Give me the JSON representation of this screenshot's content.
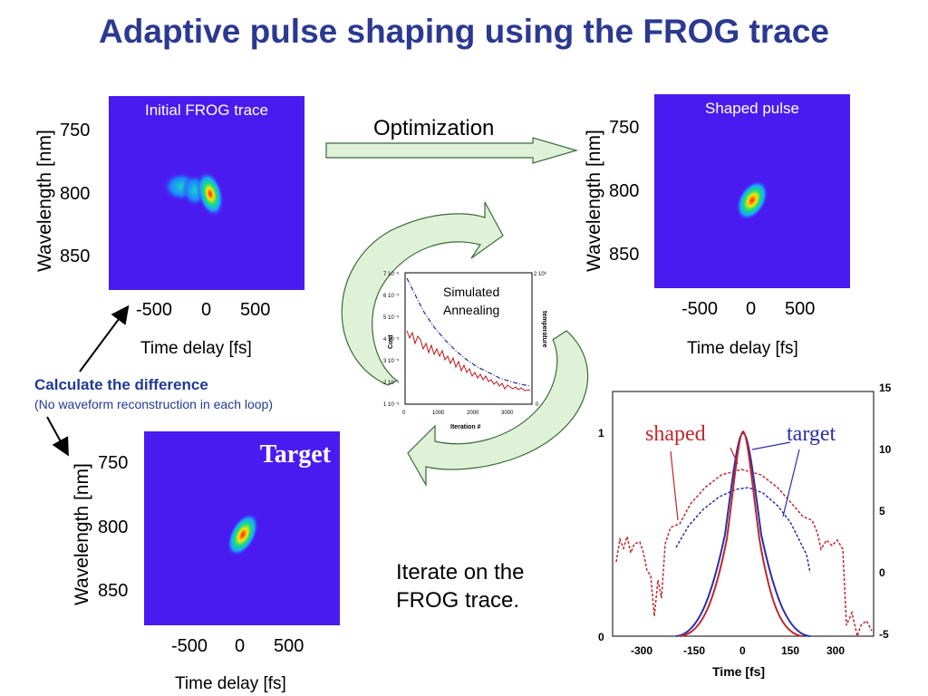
{
  "title": "Adaptive pulse shaping using the FROG trace",
  "optimization_label": "Optimization",
  "initial": {
    "label": "Initial FROG trace",
    "ylabel": "Wavelength [nm]",
    "xlabel": "Time delay [fs]",
    "yticks": [
      "750",
      "800",
      "850"
    ],
    "xticks": [
      "-500",
      "0",
      "500"
    ]
  },
  "shaped": {
    "label": "Shaped pulse",
    "ylabel": "Wavelength [nm]",
    "xlabel": "Time delay [fs]",
    "yticks": [
      "750",
      "800",
      "850"
    ],
    "xticks": [
      "-500",
      "0",
      "500"
    ]
  },
  "target": {
    "label": "Target",
    "ylabel": "Wavelength [nm]",
    "xlabel": "Time delay [fs]",
    "yticks": [
      "750",
      "800",
      "850"
    ],
    "xticks": [
      "-500",
      "0",
      "500"
    ]
  },
  "calc": {
    "title": "Calculate the difference",
    "subtitle": "(No waveform reconstruction in each loop)"
  },
  "iterate": [
    "Iterate on the",
    "FROG trace."
  ],
  "annealing": {
    "label": [
      "Simulated",
      "Annealing"
    ],
    "ylabel_left": "Cost",
    "ylabel_right": "temperature",
    "xlabel": "Iteration #",
    "yticks_left": [
      "7 10⁻⁵",
      "6 10⁻⁵",
      "5 10⁻⁵",
      "4 10⁻⁵",
      "3 10⁻⁵",
      "2 10⁻⁵",
      "1 10⁻⁵"
    ],
    "yticks_right": [
      "2 10⁶",
      "0"
    ],
    "xticks": [
      "0",
      "1000",
      "2000",
      "3000"
    ]
  },
  "pulse_plot": {
    "xlabel": "Time [fs]",
    "xticks": [
      "-300",
      "-150",
      "0",
      "150",
      "300"
    ],
    "yticks_left": [
      "1",
      "0"
    ],
    "yticks_right": [
      "15",
      "10",
      "5",
      "0",
      "-5"
    ],
    "label_shaped": "shaped",
    "label_target": "target",
    "colors": {
      "shaped": "#c0262d",
      "target": "#2a2fa8"
    }
  },
  "colors": {
    "title": "#2b3990",
    "background_trace": "#4a1bf0",
    "arrow_fill": "#dff2d8",
    "arrow_stroke": "#3a6b3a"
  }
}
